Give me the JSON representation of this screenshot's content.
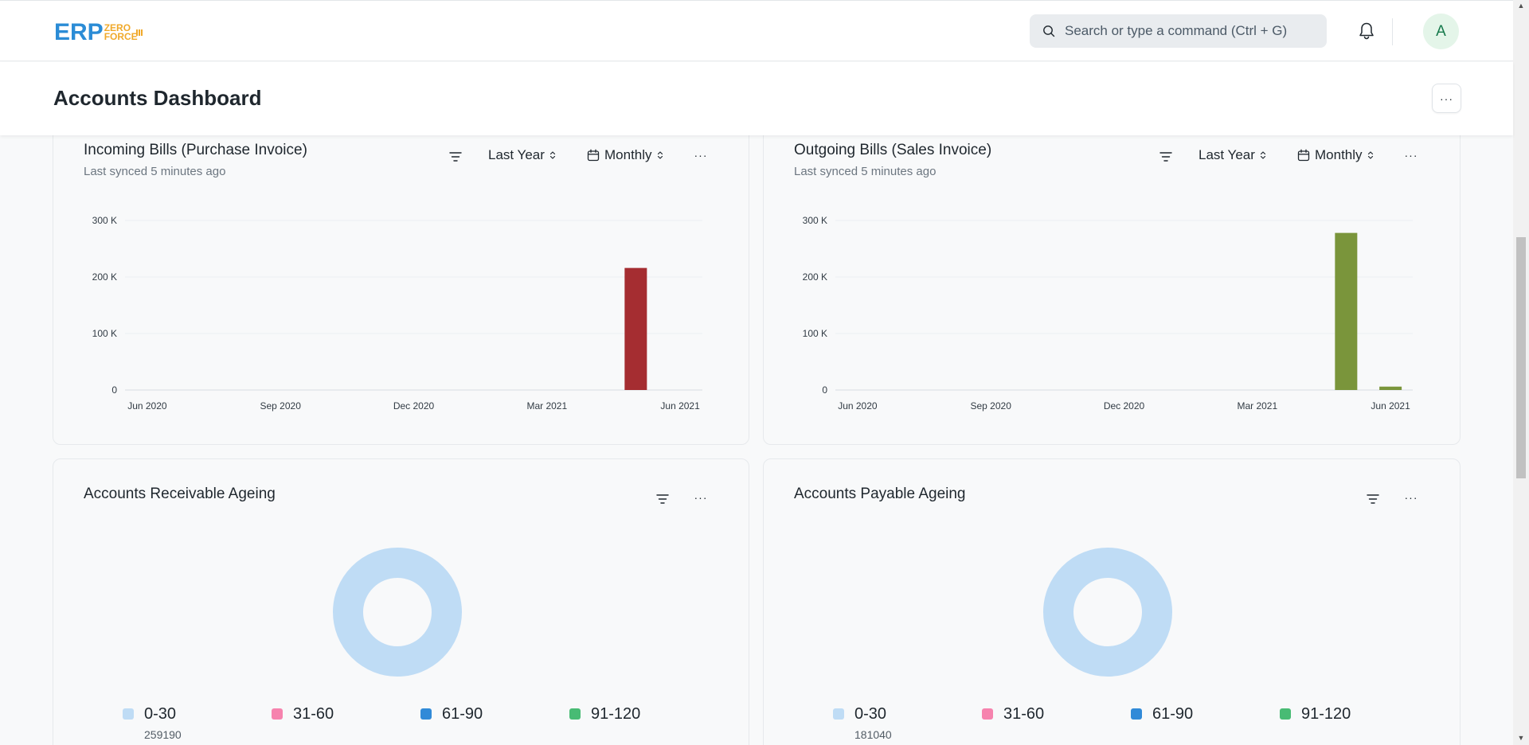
{
  "navbar": {
    "logo_main": "ERP",
    "logo_line1": "ZERO",
    "logo_line2": "FORCE",
    "search_placeholder": "Search or type a command (Ctrl + G)",
    "avatar_initial": "A"
  },
  "page": {
    "title": "Accounts Dashboard",
    "menu_label": "···"
  },
  "cards": {
    "incoming": {
      "title": "Incoming Bills (Purchase Invoice)",
      "subtitle": "Last synced 5 minutes ago",
      "range_label": "Last Year",
      "interval_label": "Monthly",
      "menu_label": "···"
    },
    "outgoing": {
      "title": "Outgoing Bills (Sales Invoice)",
      "subtitle": "Last synced 5 minutes ago",
      "range_label": "Last Year",
      "interval_label": "Monthly",
      "menu_label": "···"
    },
    "receivable": {
      "title": "Accounts Receivable Ageing",
      "menu_label": "···",
      "legend": [
        {
          "label": "0-30",
          "value": "259190",
          "color": "#bfdcf5"
        },
        {
          "label": "31-60",
          "value": "",
          "color": "#f683ae"
        },
        {
          "label": "61-90",
          "value": "",
          "color": "#318ad8"
        },
        {
          "label": "91-120",
          "value": "",
          "color": "#48bb74"
        }
      ]
    },
    "payable": {
      "title": "Accounts Payable Ageing",
      "menu_label": "···",
      "legend": [
        {
          "label": "0-30",
          "value": "181040",
          "color": "#bfdcf5"
        },
        {
          "label": "31-60",
          "value": "",
          "color": "#f683ae"
        },
        {
          "label": "61-90",
          "value": "",
          "color": "#318ad8"
        },
        {
          "label": "91-120",
          "value": "",
          "color": "#48bb74"
        }
      ]
    }
  },
  "chart_data": [
    {
      "type": "bar",
      "title": "Incoming Bills (Purchase Invoice)",
      "x_ticks": [
        "Jun 2020",
        "Sep 2020",
        "Dec 2020",
        "Mar 2021",
        "Jun 2021"
      ],
      "y_ticks": [
        "0",
        "100 K",
        "200 K",
        "300 K"
      ],
      "ylim": [
        0,
        300000
      ],
      "categories": [
        "Jun 2020",
        "Jul 2020",
        "Aug 2020",
        "Sep 2020",
        "Oct 2020",
        "Nov 2020",
        "Dec 2020",
        "Jan 2021",
        "Feb 2021",
        "Mar 2021",
        "Apr 2021",
        "May 2021",
        "Jun 2021"
      ],
      "values": [
        0,
        0,
        0,
        0,
        0,
        0,
        0,
        0,
        0,
        0,
        0,
        216000,
        0
      ],
      "color": "#a52d31"
    },
    {
      "type": "bar",
      "title": "Outgoing Bills (Sales Invoice)",
      "x_ticks": [
        "Jun 2020",
        "Sep 2020",
        "Dec 2020",
        "Mar 2021",
        "Jun 2021"
      ],
      "y_ticks": [
        "0",
        "100 K",
        "200 K",
        "300 K"
      ],
      "ylim": [
        0,
        300000
      ],
      "categories": [
        "Jun 2020",
        "Jul 2020",
        "Aug 2020",
        "Sep 2020",
        "Oct 2020",
        "Nov 2020",
        "Dec 2020",
        "Jan 2021",
        "Feb 2021",
        "Mar 2021",
        "Apr 2021",
        "May 2021",
        "Jun 2021"
      ],
      "values": [
        0,
        0,
        0,
        0,
        0,
        0,
        0,
        0,
        0,
        0,
        0,
        278000,
        6000
      ],
      "color": "#7a953b"
    },
    {
      "type": "pie",
      "title": "Accounts Receivable Ageing",
      "categories": [
        "0-30",
        "31-60",
        "61-90",
        "91-120"
      ],
      "values": [
        259190,
        0,
        0,
        0
      ]
    },
    {
      "type": "pie",
      "title": "Accounts Payable Ageing",
      "categories": [
        "0-30",
        "31-60",
        "61-90",
        "91-120"
      ],
      "values": [
        181040,
        0,
        0,
        0
      ]
    }
  ]
}
